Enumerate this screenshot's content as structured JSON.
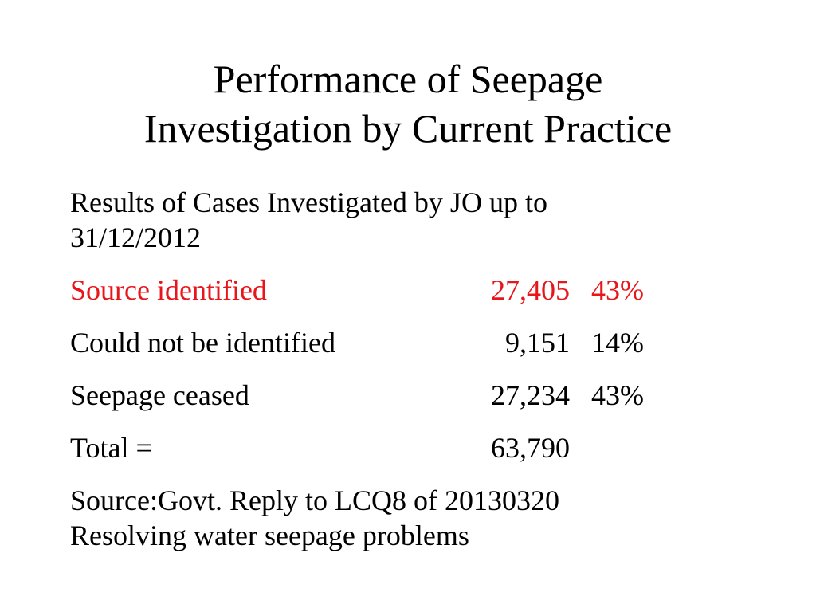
{
  "slide": {
    "title_lines": [
      "Performance of Seepage",
      "Investigation by Current Practice"
    ],
    "intro_lines": [
      "Results of Cases Investigated by JO up to",
      "31/12/2012"
    ],
    "rows": [
      {
        "label": "Source identified",
        "count": "27,405",
        "percent": "43%",
        "highlight": true
      },
      {
        "label": "Could not be identified",
        "count": "9,151",
        "percent": "14%",
        "highlight": false
      },
      {
        "label": "Seepage ceased",
        "count": "27,234",
        "percent": "43%",
        "highlight": false
      },
      {
        "label": "Total  =",
        "count": "63,790",
        "percent": "",
        "highlight": false
      }
    ],
    "source_lines": [
      "Source:Govt. Reply to LCQ8 of 20130320",
      "Resolving water seepage problems"
    ],
    "colors": {
      "highlight": "#e8161b",
      "text": "#000000",
      "background": "#ffffff"
    }
  }
}
